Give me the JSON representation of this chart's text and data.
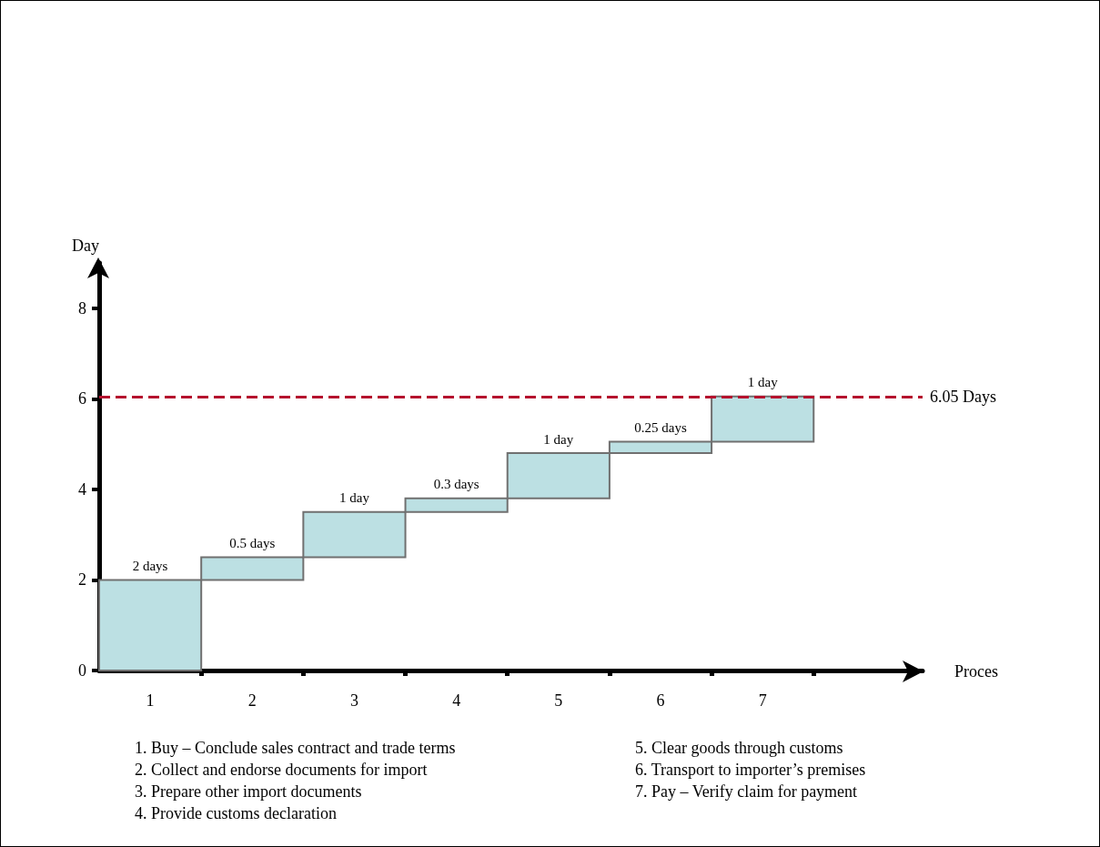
{
  "chart_data": {
    "type": "bar",
    "ylabel": "Day",
    "categories": [
      "1",
      "2",
      "3",
      "4",
      "5",
      "6",
      "7"
    ],
    "base": [
      0,
      2,
      2.5,
      3.5,
      3.8,
      4.8,
      5.05
    ],
    "values": [
      2,
      0.5,
      1,
      0.3,
      1,
      0.25,
      1
    ],
    "value_labels": [
      "2 days",
      "0.5 days",
      "1 day",
      "0.3 days",
      "1 day",
      "0.25 days",
      "1 day"
    ],
    "color": "#bce0e3",
    "ylim": [
      0,
      9
    ],
    "yticks": [
      0,
      2,
      4,
      6,
      8
    ],
    "grid": false,
    "ref_lines": [
      {
        "axis": "y",
        "value": 6.05,
        "label": "6.05 Days",
        "color": "#b5122e",
        "line_style": "dashed"
      }
    ],
    "annotations": [
      "Proces",
      "1. Buy – Conclude sales contract and trade terms",
      "2. Collect and endorse documents for import",
      "3. Prepare other import documents",
      "4. Provide customs declaration",
      "5. Clear goods through customs",
      "6. Transport to importer’s premises",
      "7. Pay – Verify claim for payment"
    ]
  }
}
